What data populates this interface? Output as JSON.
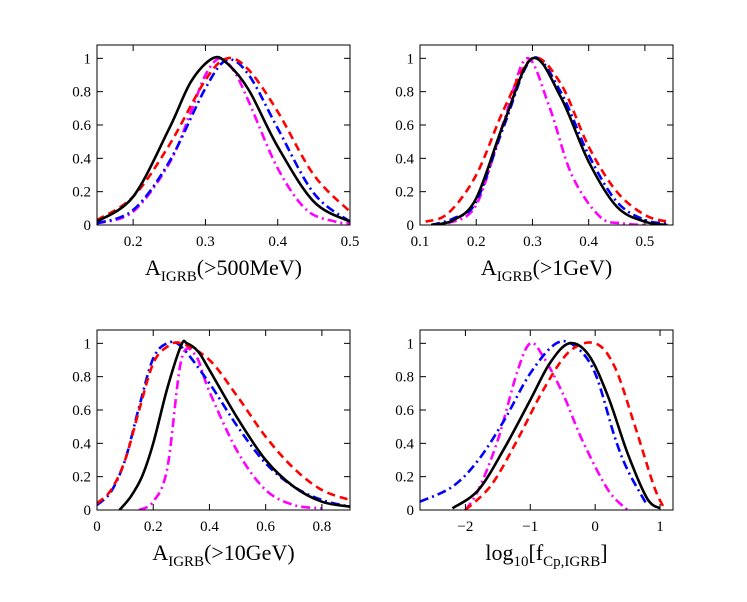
{
  "chart_data": [
    {
      "type": "line",
      "xlabel_main": "A",
      "xlabel_sub": "IGRB",
      "xlabel_tail": "(>500MeV)",
      "xlim": [
        0.15,
        0.5
      ],
      "ylim": [
        0,
        1.08
      ],
      "xticks": [
        0.2,
        0.3,
        0.4,
        0.5
      ],
      "xtick_labels": [
        "0.2",
        "0.3",
        "0.4",
        "0.5"
      ],
      "yticks": [
        0,
        0.2,
        0.4,
        0.6,
        0.8,
        1
      ],
      "ytick_labels": [
        "0",
        "0.2",
        "0.4",
        "0.6",
        "0.8",
        "1"
      ],
      "series": [
        {
          "name": "magenta-dashdot",
          "color": "#ff00ff",
          "style": "dashdot",
          "x": [
            0.15,
            0.2,
            0.25,
            0.28,
            0.3,
            0.32,
            0.34,
            0.36,
            0.4,
            0.44,
            0.48,
            0.5
          ],
          "y": [
            0.01,
            0.08,
            0.37,
            0.68,
            0.9,
            1.0,
            0.92,
            0.74,
            0.34,
            0.09,
            0.02,
            0.01
          ]
        },
        {
          "name": "blue-dashdot",
          "color": "#0000ff",
          "style": "dashdot",
          "x": [
            0.15,
            0.2,
            0.25,
            0.3,
            0.33,
            0.36,
            0.4,
            0.45,
            0.5
          ],
          "y": [
            0.01,
            0.09,
            0.38,
            0.82,
            0.99,
            0.9,
            0.58,
            0.19,
            0.02
          ]
        },
        {
          "name": "red-dashed",
          "color": "#ff0000",
          "style": "dashed",
          "x": [
            0.15,
            0.2,
            0.25,
            0.3,
            0.33,
            0.36,
            0.4,
            0.45,
            0.5
          ],
          "y": [
            0.03,
            0.17,
            0.48,
            0.87,
            1.0,
            0.93,
            0.68,
            0.3,
            0.08
          ]
        },
        {
          "name": "black-solid",
          "color": "#000000",
          "style": "solid",
          "x": [
            0.15,
            0.2,
            0.25,
            0.28,
            0.31,
            0.33,
            0.36,
            0.4,
            0.45,
            0.5
          ],
          "y": [
            0.02,
            0.17,
            0.58,
            0.86,
            1.0,
            0.97,
            0.81,
            0.47,
            0.14,
            0.02
          ]
        }
      ]
    },
    {
      "type": "line",
      "xlabel_main": "A",
      "xlabel_sub": "IGRB",
      "xlabel_tail": "(>1GeV)",
      "xlim": [
        0.1,
        0.55
      ],
      "ylim": [
        0,
        1.08
      ],
      "xticks": [
        0.1,
        0.2,
        0.3,
        0.4,
        0.5
      ],
      "xtick_labels": [
        "0.1",
        "0.2",
        "0.3",
        "0.4",
        "0.5"
      ],
      "yticks": [
        0,
        0.2,
        0.4,
        0.6,
        0.8,
        1
      ],
      "ytick_labels": [
        "0",
        "0.2",
        "0.4",
        "0.6",
        "0.8",
        "1"
      ],
      "series": [
        {
          "name": "magenta-dashdot",
          "color": "#ff00ff",
          "style": "dashdot",
          "x": [
            0.15,
            0.2,
            0.25,
            0.29,
            0.33,
            0.37,
            0.42,
            0.46,
            0.5
          ],
          "y": [
            0.01,
            0.12,
            0.63,
            1.0,
            0.71,
            0.3,
            0.05,
            0.01,
            0.0
          ]
        },
        {
          "name": "blue-dashdot",
          "color": "#0000ff",
          "style": "dashdot",
          "x": [
            0.12,
            0.16,
            0.2,
            0.25,
            0.3,
            0.35,
            0.4,
            0.45,
            0.5,
            0.54
          ],
          "y": [
            0.0,
            0.04,
            0.14,
            0.6,
            1.0,
            0.8,
            0.42,
            0.14,
            0.03,
            0.01
          ]
        },
        {
          "name": "red-dashed",
          "color": "#ff0000",
          "style": "dashed",
          "x": [
            0.11,
            0.15,
            0.2,
            0.25,
            0.3,
            0.35,
            0.4,
            0.45,
            0.5,
            0.54
          ],
          "y": [
            0.02,
            0.07,
            0.3,
            0.7,
            1.0,
            0.85,
            0.47,
            0.2,
            0.06,
            0.02
          ]
        },
        {
          "name": "black-solid",
          "color": "#000000",
          "style": "solid",
          "x": [
            0.12,
            0.16,
            0.2,
            0.25,
            0.3,
            0.35,
            0.4,
            0.45,
            0.5,
            0.54
          ],
          "y": [
            0.0,
            0.03,
            0.16,
            0.62,
            1.0,
            0.77,
            0.38,
            0.11,
            0.02,
            0.0
          ]
        }
      ]
    },
    {
      "type": "line",
      "xlabel_main": "A",
      "xlabel_sub": "IGRB",
      "xlabel_tail": "(>10GeV)",
      "xlim": [
        0,
        0.9
      ],
      "ylim": [
        0,
        1.08
      ],
      "xticks": [
        0,
        0.2,
        0.4,
        0.6,
        0.8
      ],
      "xtick_labels": [
        "0",
        "0.2",
        "0.4",
        "0.6",
        "0.8"
      ],
      "yticks": [
        0,
        0.2,
        0.4,
        0.6,
        0.8,
        1
      ],
      "ytick_labels": [
        "0",
        "0.2",
        "0.4",
        "0.6",
        "0.8",
        "1"
      ],
      "series": [
        {
          "name": "magenta-dashdot",
          "color": "#ff00ff",
          "style": "dashdot",
          "x": [
            0.15,
            0.2,
            0.25,
            0.3,
            0.35,
            0.4,
            0.5,
            0.6,
            0.7,
            0.8
          ],
          "y": [
            0.0,
            0.05,
            0.25,
            0.9,
            0.93,
            0.71,
            0.35,
            0.12,
            0.03,
            0.01
          ]
        },
        {
          "name": "blue-dashdot",
          "color": "#0000ff",
          "style": "dashdot",
          "x": [
            0.0,
            0.05,
            0.1,
            0.15,
            0.2,
            0.25,
            0.3,
            0.4,
            0.5,
            0.6,
            0.7,
            0.8,
            0.9
          ],
          "y": [
            0.03,
            0.11,
            0.3,
            0.62,
            0.91,
            1.0,
            0.98,
            0.76,
            0.5,
            0.28,
            0.14,
            0.06,
            0.02
          ]
        },
        {
          "name": "red-dashed",
          "color": "#ff0000",
          "style": "dashed",
          "x": [
            0.0,
            0.05,
            0.1,
            0.15,
            0.2,
            0.25,
            0.3,
            0.4,
            0.5,
            0.6,
            0.7,
            0.8,
            0.9
          ],
          "y": [
            0.04,
            0.12,
            0.3,
            0.6,
            0.88,
            0.98,
            1.0,
            0.9,
            0.68,
            0.44,
            0.25,
            0.12,
            0.06
          ]
        },
        {
          "name": "black-solid",
          "color": "#000000",
          "style": "solid",
          "x": [
            0.08,
            0.12,
            0.16,
            0.2,
            0.25,
            0.3,
            0.32,
            0.36,
            0.4,
            0.5,
            0.6,
            0.7,
            0.8,
            0.9
          ],
          "y": [
            0.0,
            0.08,
            0.2,
            0.4,
            0.73,
            0.99,
            1.0,
            0.95,
            0.84,
            0.55,
            0.3,
            0.14,
            0.05,
            0.02
          ]
        }
      ]
    },
    {
      "type": "line",
      "xlabel_main": "log",
      "xlabel_sub": "10",
      "xlabel_tail": "[f",
      "xlabel_sub2": "Cp,IGRB",
      "xlabel_tail2": "]",
      "xlim": [
        -2.7,
        1.2
      ],
      "ylim": [
        0,
        1.08
      ],
      "xticks": [
        -2,
        -1,
        0,
        1
      ],
      "xtick_labels": [
        "−2",
        "−1",
        "0",
        "1"
      ],
      "yticks": [
        0,
        0.2,
        0.4,
        0.6,
        0.8,
        1
      ],
      "ytick_labels": [
        "0",
        "0.2",
        "0.4",
        "0.6",
        "0.8",
        "1"
      ],
      "series": [
        {
          "name": "magenta-dashdot",
          "color": "#ff00ff",
          "style": "dashdot",
          "x": [
            -2.0,
            -1.8,
            -1.5,
            -1.2,
            -1.0,
            -0.8,
            -0.5,
            -0.2,
            0.2,
            0.5
          ],
          "y": [
            0.0,
            0.12,
            0.42,
            0.83,
            1.0,
            0.92,
            0.7,
            0.42,
            0.12,
            0.0
          ]
        },
        {
          "name": "blue-dashdot",
          "color": "#0000ff",
          "style": "dashdot",
          "x": [
            -2.7,
            -2.2,
            -1.8,
            -1.4,
            -1.0,
            -0.6,
            -0.3,
            0.0,
            0.3,
            0.5,
            0.8
          ],
          "y": [
            0.05,
            0.14,
            0.3,
            0.54,
            0.82,
            1.0,
            0.98,
            0.82,
            0.44,
            0.24,
            0.03
          ]
        },
        {
          "name": "red-dashed",
          "color": "#ff0000",
          "style": "dashed",
          "x": [
            -2.0,
            -1.6,
            -1.2,
            -0.8,
            -0.4,
            0.0,
            0.3,
            0.6,
            0.9,
            1.05
          ],
          "y": [
            0.0,
            0.15,
            0.42,
            0.72,
            0.95,
            1.0,
            0.86,
            0.52,
            0.15,
            0.02
          ]
        },
        {
          "name": "black-solid",
          "color": "#000000",
          "style": "solid",
          "x": [
            -2.2,
            -1.8,
            -1.4,
            -1.0,
            -0.7,
            -0.4,
            -0.1,
            0.2,
            0.5,
            0.8,
            1.0
          ],
          "y": [
            0.01,
            0.12,
            0.37,
            0.66,
            0.88,
            1.0,
            0.93,
            0.68,
            0.34,
            0.07,
            0.01
          ]
        }
      ]
    }
  ]
}
